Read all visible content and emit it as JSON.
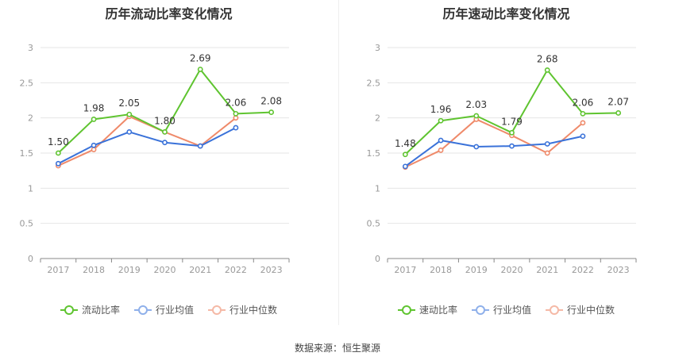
{
  "colors": {
    "current": "#5fc430",
    "avg": "#3a72d9",
    "median": "#ef8a6a",
    "axis": "#999999",
    "grid": "#e6e6e6"
  },
  "source": "数据来源：恒生聚源",
  "chart_data": [
    {
      "type": "line",
      "title": "历年流动比率变化情况",
      "categories": [
        "2017",
        "2018",
        "2019",
        "2020",
        "2021",
        "2022",
        "2023"
      ],
      "ylim": [
        0,
        3
      ],
      "yticks": [
        "0",
        "0.5",
        "1",
        "1.5",
        "2",
        "2.5",
        "3"
      ],
      "grid": true,
      "legend_position": "bottom",
      "series": [
        {
          "name": "流动比率",
          "color_key": "current",
          "values": [
            1.5,
            1.98,
            2.05,
            1.8,
            2.69,
            2.06,
            2.08
          ],
          "labels": [
            "1.50",
            "1.98",
            "2.05",
            "1.80",
            "2.69",
            "2.06",
            "2.08"
          ]
        },
        {
          "name": "行业均值",
          "color_key": "avg",
          "values": [
            1.35,
            1.61,
            1.8,
            1.65,
            1.6,
            1.86,
            null
          ]
        },
        {
          "name": "行业中位数",
          "color_key": "median",
          "values": [
            1.32,
            1.55,
            2.02,
            1.8,
            1.6,
            2.0,
            null
          ]
        }
      ]
    },
    {
      "type": "line",
      "title": "历年速动比率变化情况",
      "categories": [
        "2017",
        "2018",
        "2019",
        "2020",
        "2021",
        "2022",
        "2023"
      ],
      "ylim": [
        0,
        3
      ],
      "yticks": [
        "0",
        "0.5",
        "1",
        "1.5",
        "2",
        "2.5",
        "3"
      ],
      "grid": true,
      "legend_position": "bottom",
      "series": [
        {
          "name": "速动比率",
          "color_key": "current",
          "values": [
            1.48,
            1.96,
            2.03,
            1.79,
            2.68,
            2.06,
            2.07
          ],
          "labels": [
            "1.48",
            "1.96",
            "2.03",
            "1.79",
            "2.68",
            "2.06",
            "2.07"
          ]
        },
        {
          "name": "行业均值",
          "color_key": "avg",
          "values": [
            1.31,
            1.68,
            1.59,
            1.6,
            1.63,
            1.74,
            null
          ]
        },
        {
          "name": "行业中位数",
          "color_key": "median",
          "values": [
            1.3,
            1.54,
            1.98,
            1.75,
            1.5,
            1.93,
            null
          ]
        }
      ]
    }
  ]
}
